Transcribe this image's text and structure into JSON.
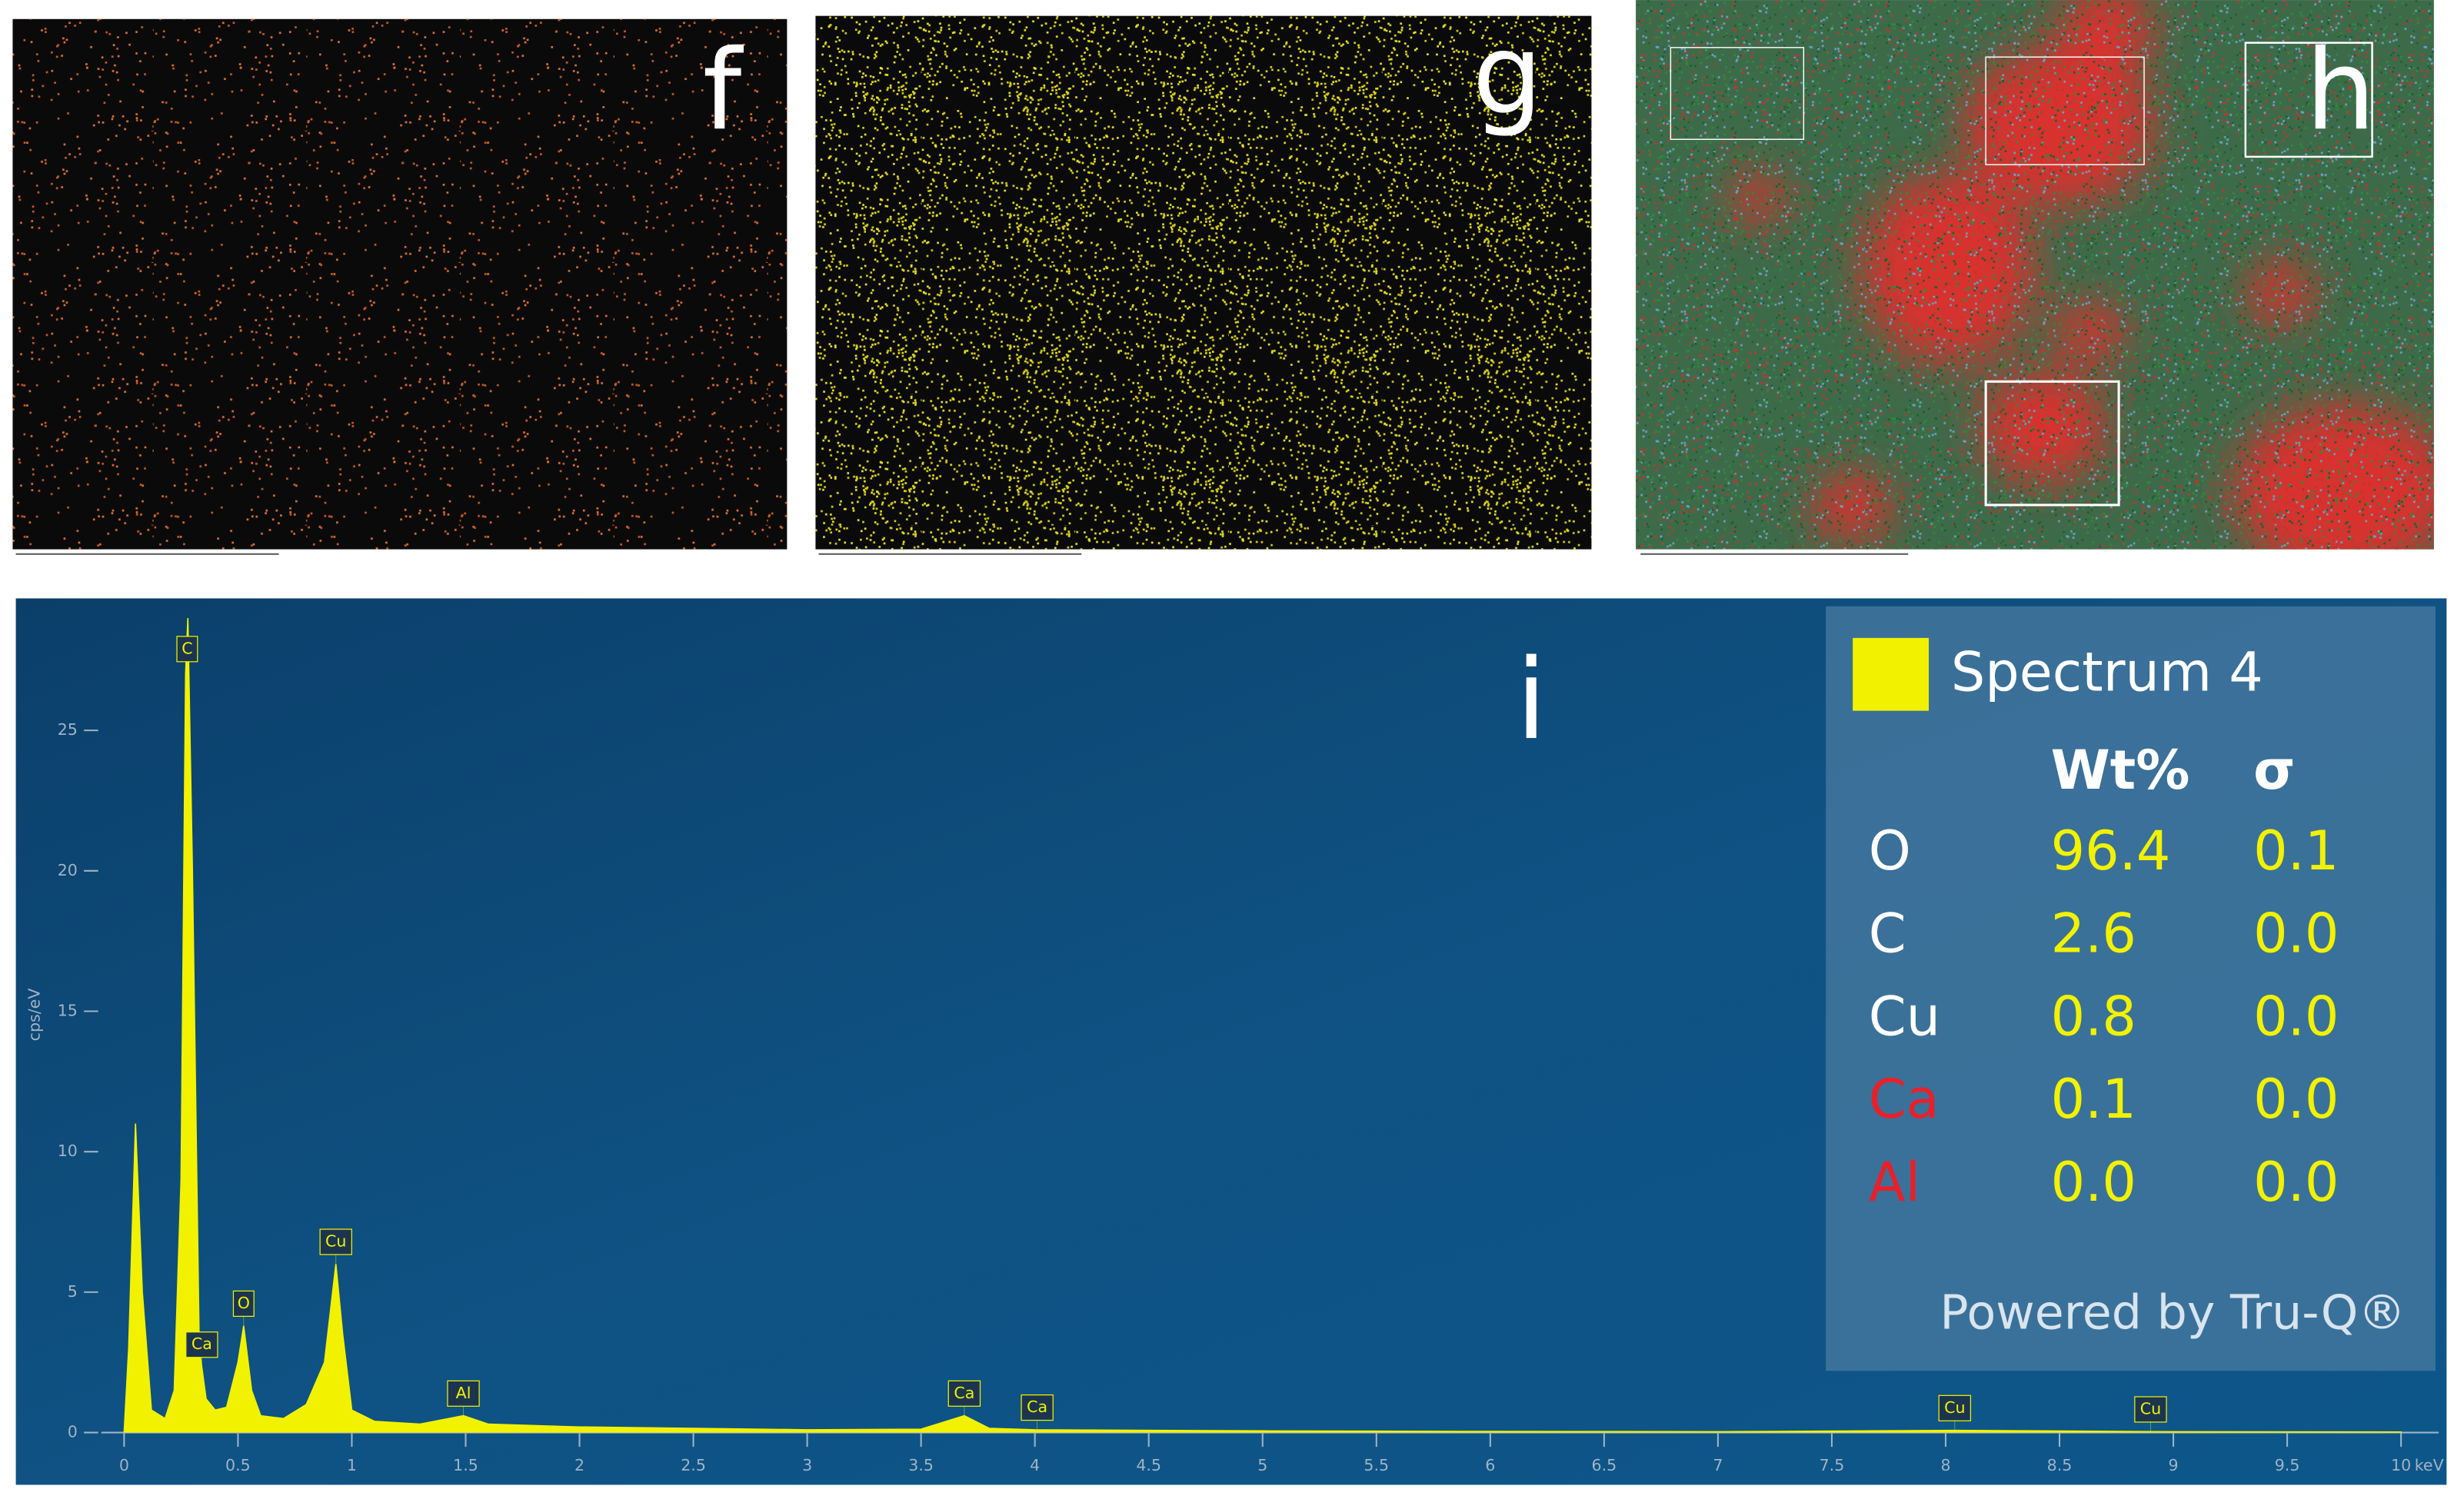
{
  "panels": [
    {
      "label": "f"
    },
    {
      "label": "g"
    },
    {
      "label": "h"
    }
  ],
  "chart_data": {
    "type": "area",
    "label": "i",
    "y_label": "cps/eV",
    "x_unit": "keV",
    "x": [
      0.0,
      0.02,
      0.05,
      0.08,
      0.12,
      0.18,
      0.22,
      0.25,
      0.27,
      0.28,
      0.3,
      0.33,
      0.36,
      0.4,
      0.45,
      0.5,
      0.525,
      0.56,
      0.6,
      0.7,
      0.8,
      0.88,
      0.93,
      0.96,
      1.0,
      1.1,
      1.3,
      1.49,
      1.6,
      2.0,
      2.5,
      3.0,
      3.5,
      3.69,
      3.8,
      4.0,
      5.0,
      6.0,
      7.0,
      8.04,
      9.0,
      10.0
    ],
    "series": [
      {
        "name": "Spectrum 4",
        "color": "#f2f200",
        "values": [
          0,
          3,
          11,
          5,
          0.8,
          0.5,
          1.5,
          9,
          27,
          29,
          20,
          3,
          1.2,
          0.8,
          0.9,
          2.5,
          3.8,
          1.5,
          0.6,
          0.5,
          1.0,
          2.5,
          6.0,
          3.5,
          0.8,
          0.4,
          0.3,
          0.6,
          0.3,
          0.2,
          0.15,
          0.1,
          0.12,
          0.6,
          0.15,
          0.1,
          0.06,
          0.04,
          0.03,
          0.08,
          0.03,
          0.02
        ]
      }
    ],
    "xlim": [
      -0.1,
      10.2
    ],
    "ylim": [
      0,
      29.7
    ],
    "xticks": [
      0,
      0.5,
      1,
      1.5,
      2,
      2.5,
      3,
      3.5,
      4,
      4.5,
      5,
      5.5,
      6,
      6.5,
      7,
      7.5,
      8,
      8.5,
      9,
      9.5,
      10
    ],
    "yticks": [
      0,
      5,
      10,
      15,
      20,
      25
    ],
    "peak_labels": [
      {
        "text": "C",
        "x": 0.277
      },
      {
        "text": "Ca",
        "x": 0.341
      },
      {
        "text": "O",
        "x": 0.525
      },
      {
        "text": "Cu",
        "x": 0.93
      },
      {
        "text": "Al",
        "x": 1.49
      },
      {
        "text": "Ca",
        "x": 3.69
      },
      {
        "text": "Ca",
        "x": 4.01
      },
      {
        "text": "Cu",
        "x": 8.04
      },
      {
        "text": "Cu",
        "x": 8.9
      }
    ],
    "results": {
      "columns": [
        "Wt%",
        "σ"
      ],
      "rows": [
        {
          "element": "O",
          "wt": "96.4",
          "sigma": "0.1",
          "color": "#ffffff"
        },
        {
          "element": "C",
          "wt": "2.6",
          "sigma": "0.0",
          "color": "#ffffff"
        },
        {
          "element": "Cu",
          "wt": "0.8",
          "sigma": "0.0",
          "color": "#ffffff"
        },
        {
          "element": "Ca",
          "wt": "0.1",
          "sigma": "0.0",
          "color": "#e8202a"
        },
        {
          "element": "Al",
          "wt": "0.0",
          "sigma": "0.0",
          "color": "#e8202a"
        }
      ],
      "footer": "Powered by Tru-Q®"
    }
  }
}
